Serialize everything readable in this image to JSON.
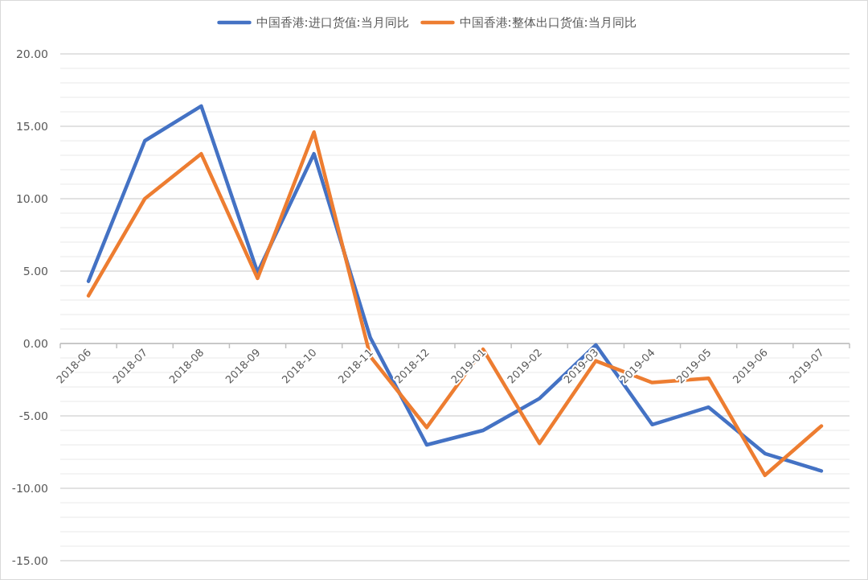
{
  "chart_data": {
    "type": "line",
    "categories": [
      "2018-06",
      "2018-07",
      "2018-08",
      "2018-09",
      "2018-10",
      "2018-11",
      "2018-12",
      "2019-01",
      "2019-02",
      "2019-03",
      "2019-04",
      "2019-05",
      "2019-06",
      "2019-07"
    ],
    "series": [
      {
        "name": "中国香港:进口货值:当月同比",
        "color": "#4472c4",
        "values": [
          4.3,
          14.0,
          16.4,
          4.9,
          13.1,
          0.4,
          -7.0,
          -6.0,
          -3.8,
          -0.1,
          -5.6,
          -4.4,
          -7.6,
          -8.8
        ]
      },
      {
        "name": "中国香港:整体出口货值:当月同比",
        "color": "#ed7d31",
        "values": [
          3.3,
          10.0,
          13.1,
          4.5,
          14.6,
          -0.9,
          -5.8,
          -0.4,
          -6.9,
          -1.2,
          -2.7,
          -2.4,
          -9.1,
          -5.7
        ]
      }
    ],
    "ylim": [
      -15,
      20
    ],
    "yticks": [
      {
        "value": -15,
        "label": "-15.00"
      },
      {
        "value": -10,
        "label": "-10.00"
      },
      {
        "value": -5,
        "label": "-5.00"
      },
      {
        "value": 0,
        "label": "0.00"
      },
      {
        "value": 5,
        "label": "5.00"
      },
      {
        "value": 10,
        "label": "10.00"
      },
      {
        "value": 15,
        "label": "15.00"
      },
      {
        "value": 20,
        "label": "20.00"
      }
    ],
    "grid": "y",
    "legend": "top",
    "marker": "none",
    "line_style": "solid"
  }
}
